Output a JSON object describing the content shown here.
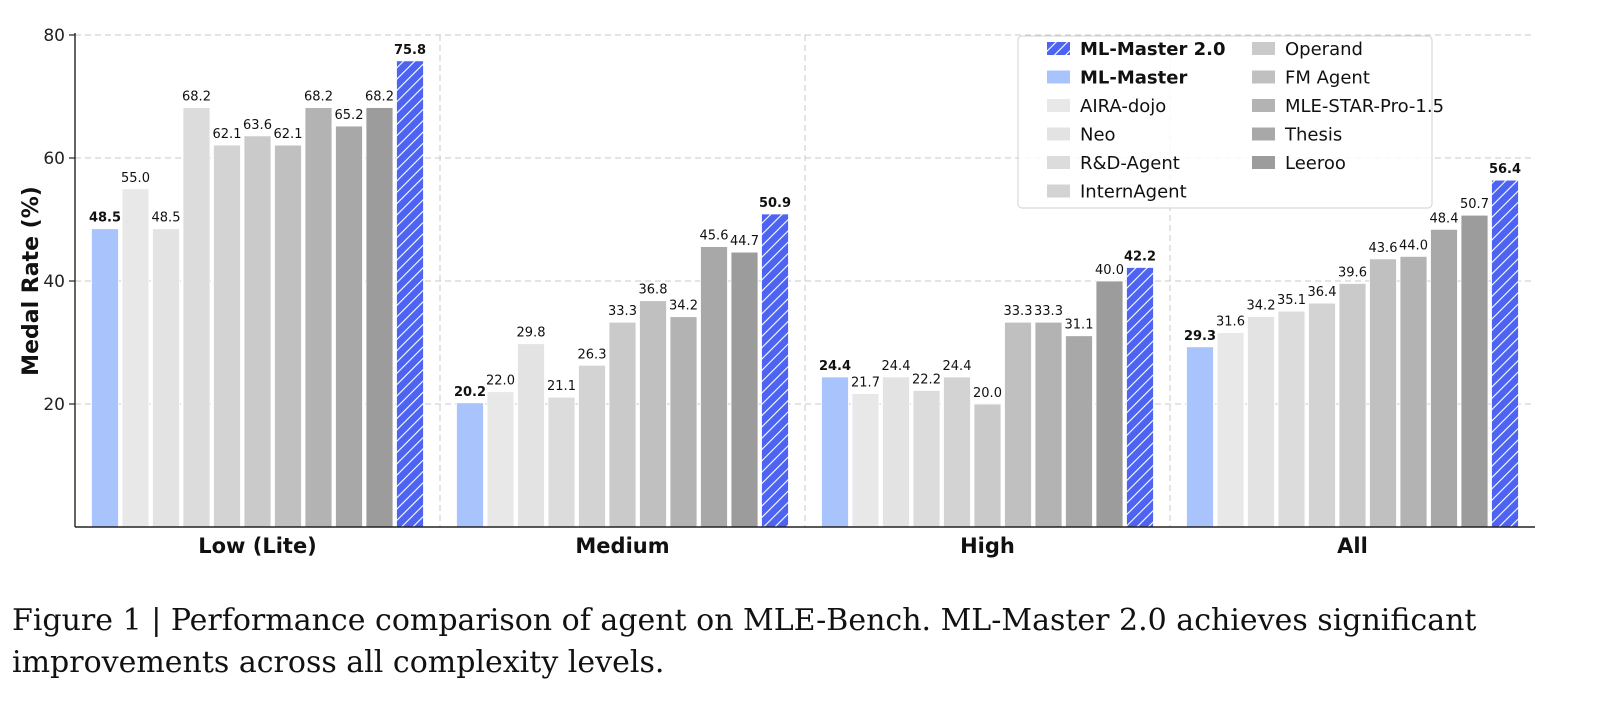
{
  "chart_data": {
    "type": "bar",
    "title": "",
    "xlabel": "",
    "ylabel": "Medal Rate (%)",
    "ylim": [
      0,
      80
    ],
    "yticks": [
      20,
      40,
      60,
      80
    ],
    "grid": true,
    "legend_placement": "top-right",
    "categories": [
      "Low (Lite)",
      "Medium",
      "High",
      "All"
    ],
    "series": [
      {
        "name": "ML-Master",
        "color": "#a9c4fc",
        "bold": true,
        "values": [
          48.5,
          20.2,
          24.4,
          29.3
        ]
      },
      {
        "name": "AIRA-dojo",
        "color": "#e8e8e8",
        "values": [
          55.0,
          22.0,
          21.7,
          31.6
        ]
      },
      {
        "name": "Neo",
        "color": "#e3e3e3",
        "values": [
          48.5,
          29.8,
          24.4,
          34.2
        ]
      },
      {
        "name": "R&D-Agent",
        "color": "#dcdcdc",
        "values": [
          68.2,
          21.1,
          22.2,
          35.1
        ]
      },
      {
        "name": "InternAgent",
        "color": "#d3d3d3",
        "values": [
          62.1,
          26.3,
          24.4,
          36.4
        ]
      },
      {
        "name": "Operand",
        "color": "#cacaca",
        "values": [
          63.6,
          33.3,
          20.0,
          39.6
        ]
      },
      {
        "name": "FM Agent",
        "color": "#c0c0c0",
        "values": [
          62.1,
          36.8,
          33.3,
          43.6
        ]
      },
      {
        "name": "MLE-STAR-Pro-1.5",
        "color": "#b3b3b3",
        "values": [
          68.2,
          34.2,
          33.3,
          44.0
        ]
      },
      {
        "name": "Thesis",
        "color": "#a8a8a8",
        "values": [
          65.2,
          45.6,
          31.1,
          48.4
        ]
      },
      {
        "name": "Leeroo",
        "color": "#9c9c9c",
        "values": [
          68.2,
          44.7,
          40.0,
          50.7
        ]
      },
      {
        "name": "ML-Master 2.0",
        "color": "#4d63f2",
        "hatch": true,
        "bold": true,
        "values": [
          75.8,
          50.9,
          42.2,
          56.4
        ]
      }
    ],
    "legend_order": [
      "ML-Master 2.0",
      "ML-Master",
      "AIRA-dojo",
      "Neo",
      "R&D-Agent",
      "InternAgent",
      "Operand",
      "FM Agent",
      "MLE-STAR-Pro-1.5",
      "Thesis",
      "Leeroo"
    ]
  },
  "caption": "Figure 1 | Performance comparison of agent on MLE-Bench. ML-Master 2.0 achieves significant improvements across all complexity levels."
}
